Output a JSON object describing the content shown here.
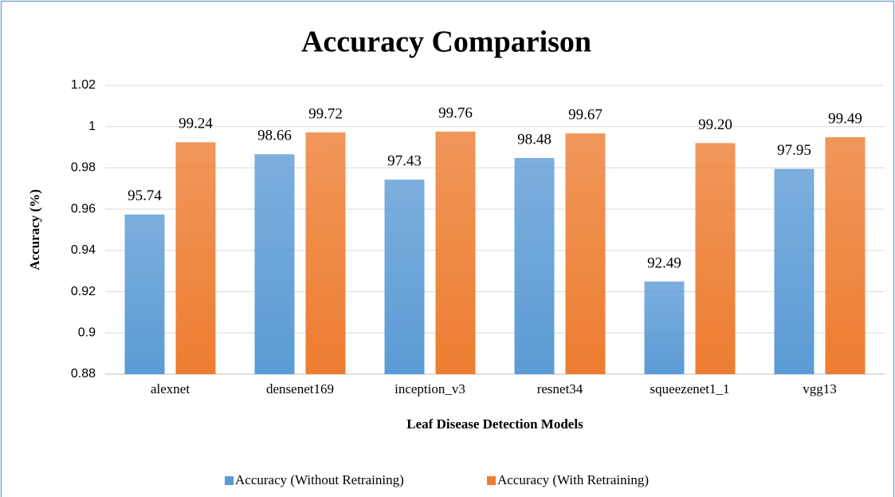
{
  "chart_data": {
    "type": "bar",
    "title": "Accuracy Comparison",
    "x_label": "Leaf Disease Detection Models",
    "y_label": "Accuracy (%)",
    "categories": [
      "alexnet",
      "densenet169",
      "inception_v3",
      "resnet34",
      "squeezenet1_1",
      "vgg13"
    ],
    "series": [
      {
        "name": "Accuracy (Without Retraining)",
        "color": "#5b9bd5",
        "values": [
          0.9574,
          0.9866,
          0.9743,
          0.9848,
          0.9249,
          0.9795
        ],
        "value_labels": [
          "95.74",
          "98.66",
          "97.43",
          "98.48",
          "92.49",
          "97.95"
        ]
      },
      {
        "name": "Accuracy (With Retraining)",
        "color": "#ed7d31",
        "values": [
          0.9924,
          0.9972,
          0.9976,
          0.9967,
          0.992,
          0.9949
        ],
        "value_labels": [
          "99.24",
          "99.72",
          "99.76",
          "99.67",
          "99.20",
          "99.49"
        ]
      }
    ],
    "ylim": [
      0.88,
      1.02
    ],
    "yticks": [
      0.88,
      0.9,
      0.92,
      0.94,
      0.96,
      0.98,
      1,
      1.02
    ],
    "grid": true,
    "legend": "bottom"
  }
}
